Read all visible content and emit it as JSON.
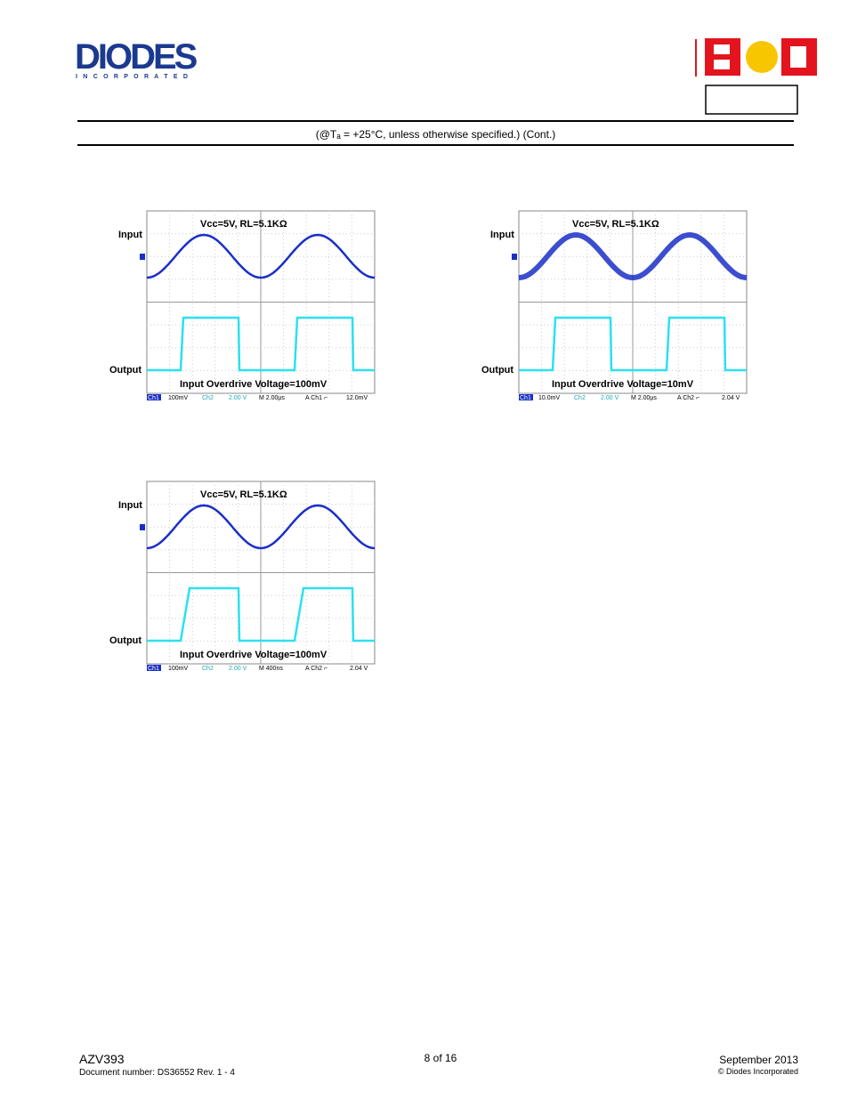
{
  "header": {
    "diodes_logo_text": "DIODES",
    "diodes_logo_sub": "I N C O R P O R A T E D",
    "bcd_logo_text": "BCD",
    "conditions": "(@Tₐ = +25°C, unless otherwise specified.) (Cont.)"
  },
  "scopes": [
    {
      "title": "Vcc=5V, RL=5.1KΩ",
      "input_label": "Input",
      "output_label": "Output",
      "caption": "Input Overdrive Voltage=100mV",
      "status": {
        "ch1": "Ch1",
        "ch1_scale": "100mV",
        "ch2": "Ch2",
        "ch2_scale": "2.00 V",
        "time": "M 2.00µs",
        "trigger": "A  Ch1  ⌐",
        "level": "12.0mV"
      }
    },
    {
      "title": "Vcc=5V, RL=5.1KΩ",
      "input_label": "Input",
      "output_label": "Output",
      "caption": "Input Overdrive Voltage=10mV",
      "status": {
        "ch1": "Ch1",
        "ch1_scale": "10.0mV",
        "ch2": "Ch2",
        "ch2_scale": "2.00 V",
        "time": "M 2.00µs",
        "trigger": "A  Ch2  ⌐",
        "level": "2.04 V"
      }
    },
    {
      "title": "Vcc=5V, RL=5.1KΩ",
      "input_label": "Input",
      "output_label": "Output",
      "caption": "Input Overdrive Voltage=100mV",
      "status": {
        "ch1": "Ch1",
        "ch1_scale": "100mV",
        "ch2": "Ch2",
        "ch2_scale": "2.00 V",
        "time": "M 400ns",
        "trigger": "A  Ch2  ⌐",
        "level": "2.04 V"
      }
    }
  ],
  "footer": {
    "part": "AZV393",
    "doc_number": "Document number: DS36552 Rev. 1 - 4",
    "page": "8 of 16",
    "date": "September 2013",
    "copyright": "© Diodes Incorporated"
  },
  "colors": {
    "input_trace": "#1a2fc8",
    "output_trace": "#2de0ee",
    "bcd_red": "#e3141d",
    "bcd_yellow": "#f7c600",
    "diodes_blue": "#1b3a8f"
  }
}
